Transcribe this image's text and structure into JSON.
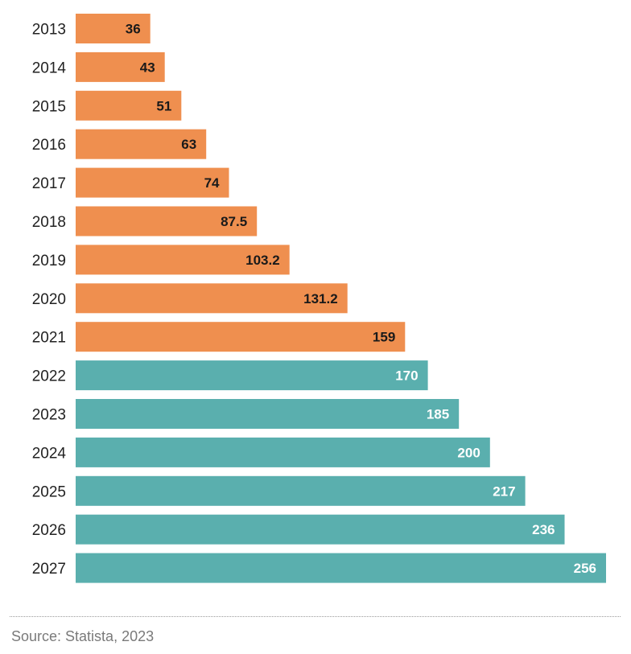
{
  "chart_data": {
    "type": "bar",
    "orientation": "horizontal",
    "categories": [
      "2013",
      "2014",
      "2015",
      "2016",
      "2017",
      "2018",
      "2019",
      "2020",
      "2021",
      "2022",
      "2023",
      "2024",
      "2025",
      "2026",
      "2027"
    ],
    "values": [
      36,
      43,
      51,
      63,
      74,
      87.5,
      103.2,
      131.2,
      159,
      170,
      185,
      200,
      217,
      236,
      256
    ],
    "value_labels": [
      "36",
      "43",
      "51",
      "63",
      "74",
      "87.5",
      "103.2",
      "131.2",
      "159",
      "170",
      "185",
      "200",
      "217",
      "236",
      "256"
    ],
    "series_split": {
      "actual_last_index": 8
    },
    "colors": {
      "actual": "#ef8f4f",
      "forecast": "#5aafae",
      "actual_label": "#1a1a1a",
      "forecast_label": "#ffffff"
    },
    "title": "",
    "xlabel": "",
    "ylabel": "",
    "xlim": [
      0,
      256
    ]
  },
  "footer": {
    "source": "Source: Statista, 2023"
  }
}
